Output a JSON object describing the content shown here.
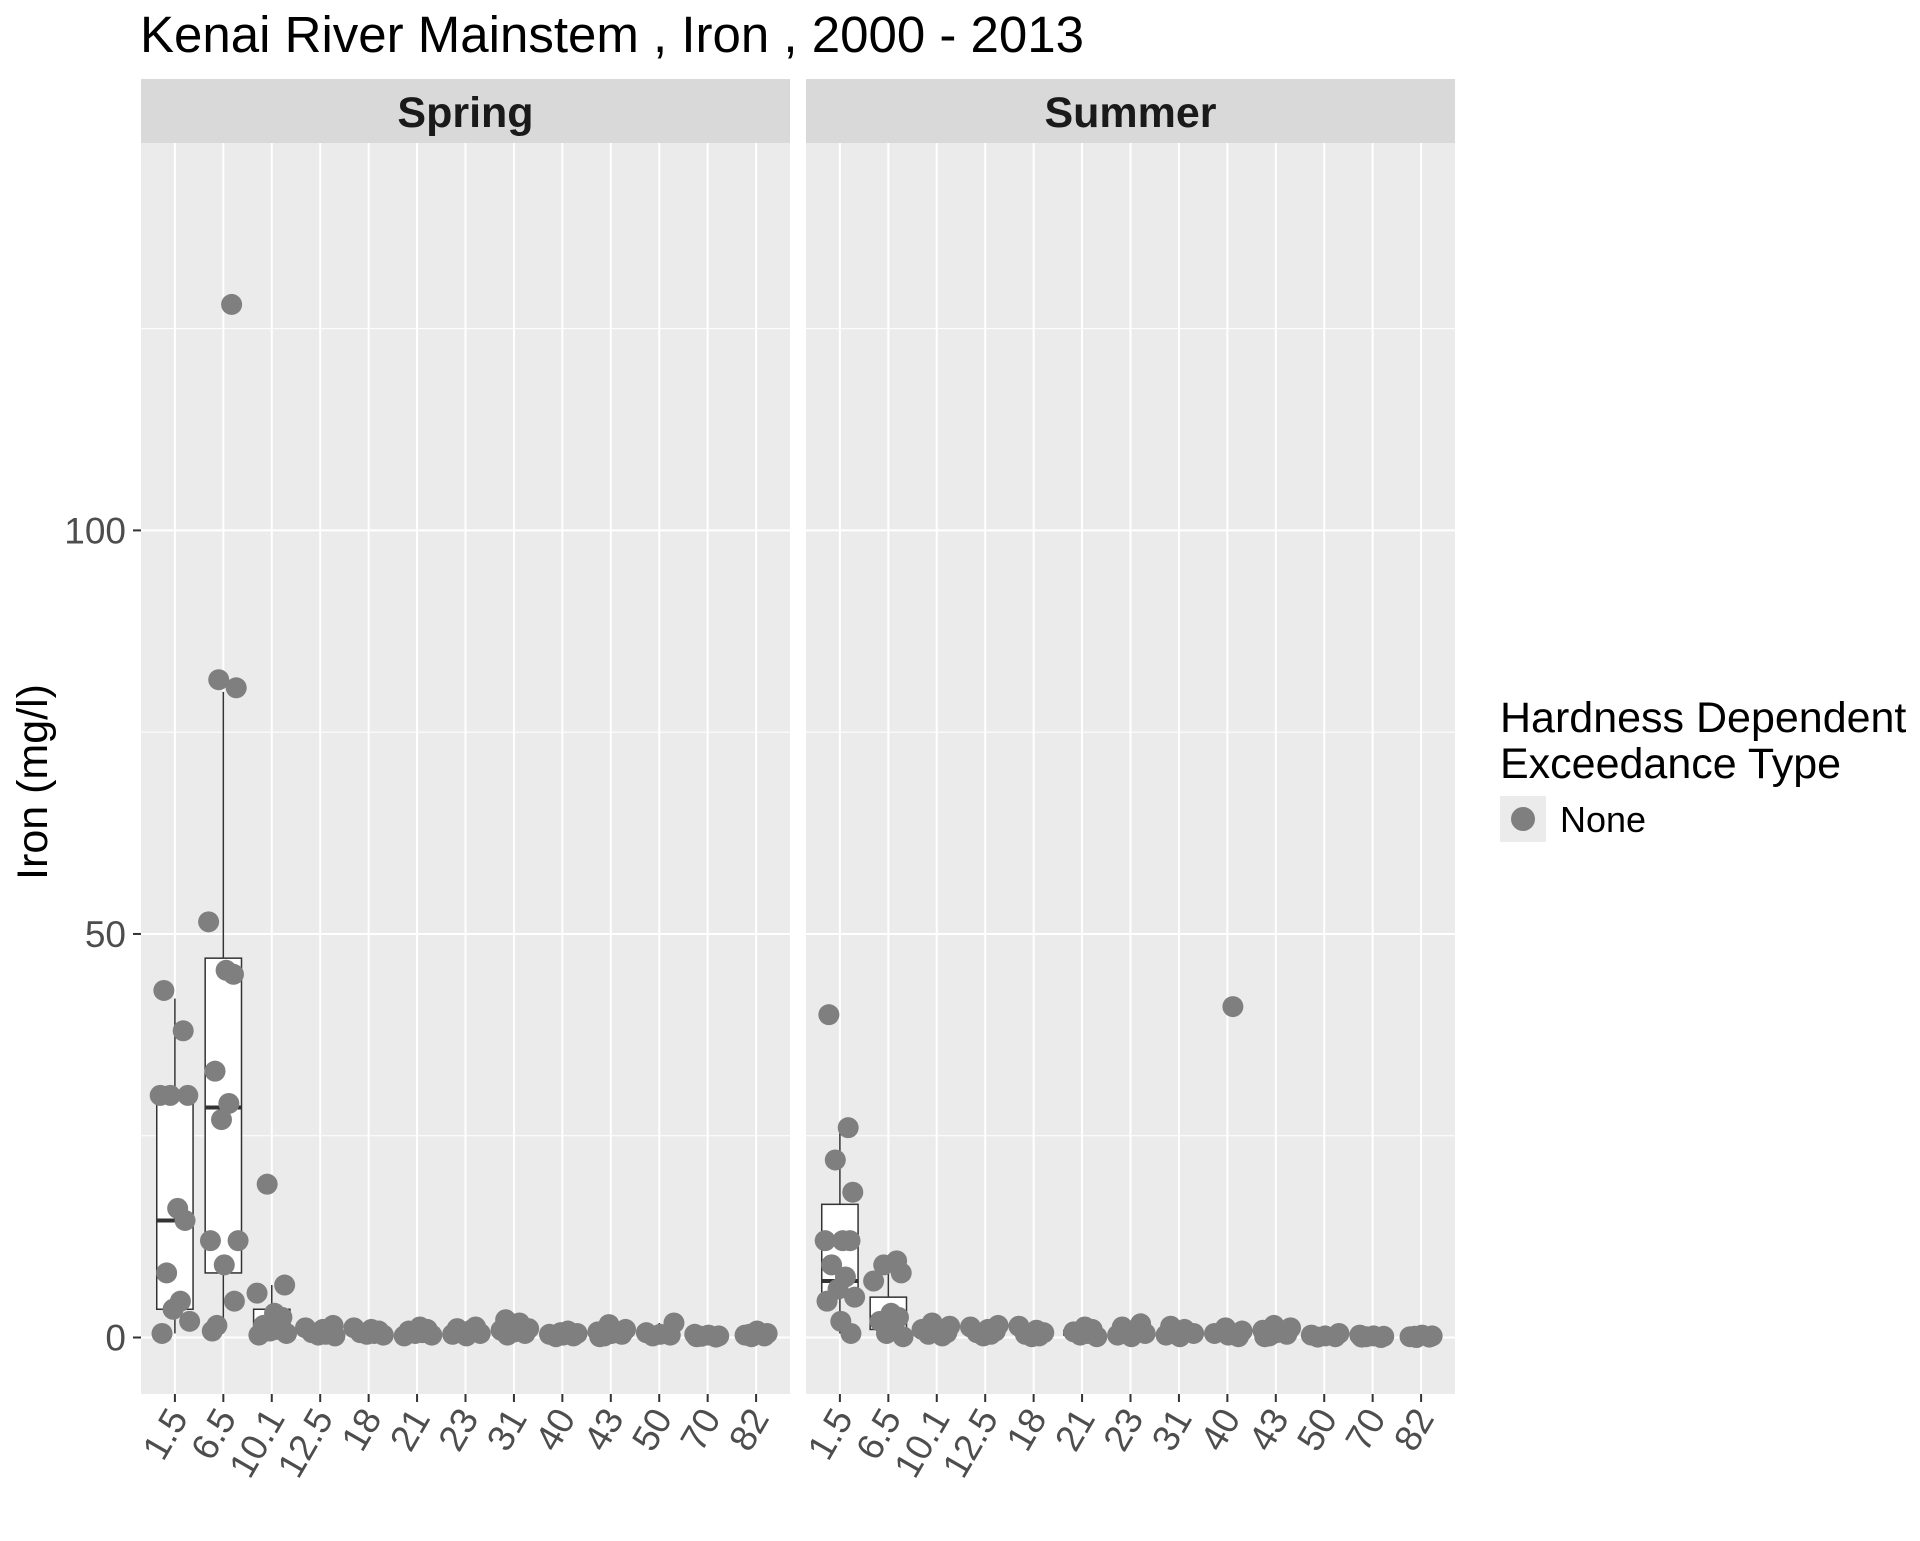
{
  "chart_data": {
    "type": "box",
    "title": "Kenai River Mainstem , Iron , 2000 - 2013",
    "xlabel": "",
    "ylabel": "Iron (mg/l)",
    "ylim": [
      -7,
      148
    ],
    "y_ticks": [
      0,
      50,
      100
    ],
    "y_tick_labels": [
      "0",
      "50",
      "100"
    ],
    "grid": true,
    "categories": [
      "1.5",
      "6.5",
      "10.1",
      "12.5",
      "18",
      "21",
      "23",
      "31",
      "40",
      "43",
      "50",
      "70",
      "82"
    ],
    "point_color": "#7f7f7f",
    "panel_background": "#ebebeb",
    "strip_background": "#d9d9d9",
    "legend": {
      "title_line1": "Hardness Dependent",
      "title_line2": "Exceedance Type",
      "items": [
        {
          "label": "None",
          "color": "#7f7f7f"
        }
      ],
      "position": "right"
    },
    "panels": [
      {
        "name": "Spring",
        "boxes": [
          {
            "category": "1.5",
            "lower": 0.5,
            "q1": 3.5,
            "median": 14.5,
            "q3": 30,
            "upper": 42
          },
          {
            "category": "6.5",
            "lower": 0.5,
            "q1": 8,
            "median": 28.5,
            "q3": 47,
            "upper": 80
          },
          {
            "category": "10.1",
            "lower": 0.5,
            "q1": 0.6,
            "median": 1.1,
            "q3": 3.5,
            "upper": 6.5
          },
          {
            "category": "12.5",
            "lower": 0.2,
            "q1": 0.4,
            "median": 0.6,
            "q3": 1.0,
            "upper": 1.5
          },
          {
            "category": "18",
            "lower": 0.2,
            "q1": 0.4,
            "median": 0.6,
            "q3": 0.9,
            "upper": 1.2
          },
          {
            "category": "21",
            "lower": 0.2,
            "q1": 0.4,
            "median": 0.6,
            "q3": 0.9,
            "upper": 1.3
          },
          {
            "category": "23",
            "lower": 0.2,
            "q1": 0.4,
            "median": 0.6,
            "q3": 0.9,
            "upper": 1.3
          },
          {
            "category": "31",
            "lower": 0.2,
            "q1": 0.5,
            "median": 0.8,
            "q3": 1.2,
            "upper": 2.2
          },
          {
            "category": "40",
            "lower": 0.1,
            "q1": 0.2,
            "median": 0.3,
            "q3": 0.5,
            "upper": 0.8
          },
          {
            "category": "43",
            "lower": 0.1,
            "q1": 0.2,
            "median": 0.4,
            "q3": 0.7,
            "upper": 1.6
          },
          {
            "category": "50",
            "lower": 0.1,
            "q1": 0.2,
            "median": 0.3,
            "q3": 0.6,
            "upper": 1.8
          },
          {
            "category": "70",
            "lower": 0.0,
            "q1": 0.1,
            "median": 0.15,
            "q3": 0.25,
            "upper": 0.4
          },
          {
            "category": "82",
            "lower": 0.0,
            "q1": 0.1,
            "median": 0.2,
            "q3": 0.4,
            "upper": 0.8
          }
        ],
        "points": [
          {
            "category": "1.5",
            "values": [
              43,
              38,
              30,
              30,
              30,
              16,
              14.5,
              8,
              4.5,
              3.5,
              2,
              0.5
            ]
          },
          {
            "category": "6.5",
            "values": [
              128,
              81.5,
              80.5,
              51.5,
              45.5,
              45,
              33,
              29,
              27,
              12,
              12,
              9,
              4.5,
              1.5,
              0.8
            ]
          },
          {
            "category": "10.1",
            "values": [
              19,
              6.5,
              5.5,
              3,
              2.5,
              1.5,
              1,
              0.8,
              0.5,
              0.3
            ]
          },
          {
            "category": "12.5",
            "values": [
              1.5,
              1.2,
              1,
              0.8,
              0.6,
              0.4,
              0.3,
              0.2
            ]
          },
          {
            "category": "18",
            "values": [
              1.2,
              1,
              0.8,
              0.6,
              0.5,
              0.4,
              0.3
            ]
          },
          {
            "category": "21",
            "values": [
              1.3,
              1,
              0.8,
              0.6,
              0.5,
              0.3,
              0.2
            ]
          },
          {
            "category": "23",
            "values": [
              1.3,
              1.1,
              0.9,
              0.7,
              0.5,
              0.4,
              0.2
            ]
          },
          {
            "category": "31",
            "values": [
              2.2,
              1.8,
              1.4,
              1.1,
              0.9,
              0.7,
              0.5,
              0.3
            ]
          },
          {
            "category": "40",
            "values": [
              0.8,
              0.6,
              0.5,
              0.4,
              0.3,
              0.2,
              0.1
            ]
          },
          {
            "category": "43",
            "values": [
              1.6,
              1,
              0.7,
              0.5,
              0.4,
              0.2,
              0.1
            ]
          },
          {
            "category": "50",
            "values": [
              1.8,
              0.6,
              0.4,
              0.3,
              0.2
            ]
          },
          {
            "category": "70",
            "values": [
              0.4,
              0.3,
              0.2,
              0.15,
              0.1,
              0.05
            ]
          },
          {
            "category": "82",
            "values": [
              0.8,
              0.5,
              0.4,
              0.3,
              0.2,
              0.1
            ]
          }
        ]
      },
      {
        "name": "Summer",
        "boxes": [
          {
            "category": "1.5",
            "lower": 0.5,
            "q1": 5,
            "median": 7,
            "q3": 16.5,
            "upper": 26
          },
          {
            "category": "6.5",
            "lower": 0.3,
            "q1": 1,
            "median": 2.5,
            "q3": 5,
            "upper": 9.5
          },
          {
            "category": "10.1",
            "lower": 0.2,
            "q1": 0.4,
            "median": 0.6,
            "q3": 1.0,
            "upper": 1.8
          },
          {
            "category": "12.5",
            "lower": 0.2,
            "q1": 0.4,
            "median": 0.6,
            "q3": 1.0,
            "upper": 1.5
          },
          {
            "category": "18",
            "lower": 0.1,
            "q1": 0.3,
            "median": 0.5,
            "q3": 0.8,
            "upper": 1.4
          },
          {
            "category": "21",
            "lower": 0.1,
            "q1": 0.3,
            "median": 0.5,
            "q3": 0.9,
            "upper": 1.3
          },
          {
            "category": "23",
            "lower": 0.1,
            "q1": 0.3,
            "median": 0.6,
            "q3": 1.0,
            "upper": 1.7
          },
          {
            "category": "31",
            "lower": 0.1,
            "q1": 0.3,
            "median": 0.5,
            "q3": 0.8,
            "upper": 1.4
          },
          {
            "category": "40",
            "lower": 0.1,
            "q1": 0.2,
            "median": 0.4,
            "q3": 0.7,
            "upper": 1.2
          },
          {
            "category": "43",
            "lower": 0.1,
            "q1": 0.3,
            "median": 0.6,
            "q3": 0.9,
            "upper": 1.5
          },
          {
            "category": "50",
            "lower": 0.0,
            "q1": 0.1,
            "median": 0.15,
            "q3": 0.25,
            "upper": 0.5
          },
          {
            "category": "70",
            "lower": 0.0,
            "q1": 0.05,
            "median": 0.1,
            "q3": 0.2,
            "upper": 0.3
          },
          {
            "category": "82",
            "lower": 0.0,
            "q1": 0.05,
            "median": 0.1,
            "q3": 0.2,
            "upper": 0.3
          }
        ],
        "points": [
          {
            "category": "1.5",
            "values": [
              40,
              26,
              22,
              18,
              12,
              12,
              12,
              9,
              7.5,
              6,
              5,
              4.5,
              2,
              0.5
            ]
          },
          {
            "category": "6.5",
            "values": [
              9.5,
              9,
              8,
              7,
              3,
              2.5,
              2,
              1,
              0.5,
              0.1
            ]
          },
          {
            "category": "10.1",
            "values": [
              1.8,
              1.4,
              1,
              0.8,
              0.6,
              0.4,
              0.2
            ]
          },
          {
            "category": "12.5",
            "values": [
              1.5,
              1.3,
              1,
              0.8,
              0.6,
              0.4,
              0.2
            ]
          },
          {
            "category": "18",
            "values": [
              1.4,
              0.9,
              0.6,
              0.4,
              0.2,
              0.1
            ]
          },
          {
            "category": "21",
            "values": [
              1.3,
              1,
              0.7,
              0.5,
              0.3,
              0.1
            ]
          },
          {
            "category": "23",
            "values": [
              1.7,
              1.3,
              1,
              0.7,
              0.5,
              0.3,
              0.1
            ]
          },
          {
            "category": "31",
            "values": [
              1.4,
              1,
              0.7,
              0.5,
              0.3,
              0.1
            ]
          },
          {
            "category": "40",
            "values": [
              41,
              1.2,
              0.8,
              0.5,
              0.3,
              0.1
            ]
          },
          {
            "category": "43",
            "values": [
              1.5,
              1.2,
              0.9,
              0.6,
              0.4,
              0.2,
              0.1
            ]
          },
          {
            "category": "50",
            "values": [
              0.5,
              0.3,
              0.2,
              0.1,
              0.05
            ]
          },
          {
            "category": "70",
            "values": [
              0.3,
              0.2,
              0.15,
              0.1,
              0.05,
              0.0
            ]
          },
          {
            "category": "82",
            "values": [
              0.3,
              0.2,
              0.15,
              0.1,
              0.05,
              0.0
            ]
          }
        ]
      }
    ]
  }
}
